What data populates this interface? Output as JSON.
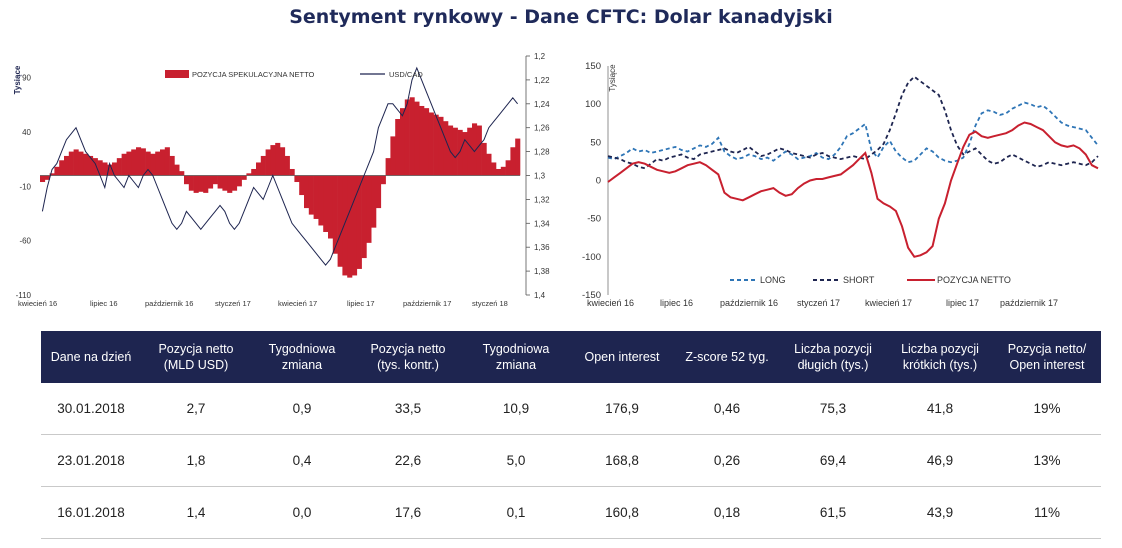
{
  "title": "Sentyment rynkowy - Dane CFTC:  Dolar kanadyjski",
  "colors": {
    "bar": "#c8202f",
    "usdcad": "#1e2550",
    "long": "#2e75b6",
    "short": "#1e2550",
    "net": "#c8202f",
    "header_bg": "#1e2550"
  },
  "chart_data": [
    {
      "type": "bar+line",
      "title": "",
      "ylabel_left": "Tysiące",
      "ylim_left": [
        -110,
        110
      ],
      "yticks_left": [
        "90",
        "40",
        "-10",
        "-60",
        "-110"
      ],
      "ylim_right": [
        1.4,
        1.2
      ],
      "yticks_right": [
        "1,2",
        "1,22",
        "1,24",
        "1,26",
        "1,28",
        "1,3",
        "1,32",
        "1,34",
        "1,36",
        "1,38",
        "1,4"
      ],
      "xticks": [
        "kwiecień 16",
        "lipiec 16",
        "październik 16",
        "styczeń 17",
        "kwiecień 17",
        "lipiec 17",
        "październik 17",
        "styczeń 18"
      ],
      "legend": {
        "bar": "POZYCJA SPEKULACYJNA NETTO",
        "line": "USD/CAD",
        "placement": "top"
      },
      "series": [
        {
          "name": "POZYCJA SPEKULACYJNA NETTO",
          "axis": "left",
          "kind": "bar",
          "values": [
            -6,
            -4,
            2,
            8,
            14,
            18,
            22,
            24,
            22,
            20,
            18,
            16,
            14,
            12,
            10,
            12,
            16,
            20,
            22,
            24,
            26,
            25,
            22,
            20,
            22,
            24,
            26,
            18,
            10,
            4,
            -8,
            -14,
            -16,
            -15,
            -16,
            -12,
            -8,
            -12,
            -14,
            -16,
            -14,
            -10,
            -4,
            2,
            6,
            12,
            18,
            24,
            28,
            30,
            26,
            18,
            6,
            -6,
            -18,
            -30,
            -36,
            -40,
            -46,
            -52,
            -58,
            -72,
            -84,
            -92,
            -94,
            -92,
            -86,
            -76,
            -62,
            -48,
            -30,
            -8,
            16,
            36,
            52,
            62,
            70,
            72,
            68,
            64,
            62,
            58,
            56,
            54,
            50,
            46,
            44,
            42,
            40,
            44,
            48,
            46,
            30,
            20,
            12,
            6,
            8,
            14,
            26,
            34
          ]
        },
        {
          "name": "USD/CAD",
          "axis": "right",
          "kind": "line",
          "values": [
            1.33,
            1.31,
            1.295,
            1.29,
            1.28,
            1.27,
            1.265,
            1.26,
            1.27,
            1.28,
            1.285,
            1.29,
            1.3,
            1.31,
            1.29,
            1.3,
            1.305,
            1.31,
            1.3,
            1.305,
            1.31,
            1.3,
            1.295,
            1.3,
            1.31,
            1.32,
            1.33,
            1.34,
            1.345,
            1.34,
            1.33,
            1.335,
            1.34,
            1.345,
            1.34,
            1.335,
            1.33,
            1.325,
            1.33,
            1.34,
            1.345,
            1.34,
            1.33,
            1.32,
            1.31,
            1.315,
            1.32,
            1.31,
            1.3,
            1.31,
            1.32,
            1.33,
            1.34,
            1.345,
            1.35,
            1.355,
            1.36,
            1.365,
            1.37,
            1.375,
            1.37,
            1.36,
            1.35,
            1.34,
            1.33,
            1.32,
            1.31,
            1.3,
            1.29,
            1.28,
            1.26,
            1.25,
            1.24,
            1.24,
            1.245,
            1.25,
            1.24,
            1.22,
            1.21,
            1.22,
            1.23,
            1.24,
            1.25,
            1.26,
            1.27,
            1.28,
            1.285,
            1.28,
            1.27,
            1.275,
            1.28,
            1.275,
            1.27,
            1.26,
            1.255,
            1.25,
            1.245,
            1.24,
            1.235,
            1.24
          ]
        }
      ]
    },
    {
      "type": "line",
      "title": "",
      "ylabel": "Tysiące",
      "ylim": [
        -150,
        150
      ],
      "yticks": [
        "150",
        "100",
        "50",
        "0",
        "-50",
        "-100",
        "-150"
      ],
      "xticks": [
        "kwiecień 16",
        "lipiec 16",
        "październik 16",
        "styczeń 17",
        "kwiecień 17",
        "lipiec 17",
        "październik 17"
      ],
      "legend": {
        "placement": "bottom",
        "entries": [
          "LONG",
          "SHORT",
          "POZYCJA NETTO"
        ]
      },
      "series": [
        {
          "name": "LONG",
          "style": "dashed",
          "values": [
            30,
            28,
            32,
            36,
            42,
            38,
            40,
            36,
            38,
            40,
            42,
            44,
            40,
            38,
            42,
            46,
            44,
            48,
            56,
            38,
            32,
            28,
            30,
            34,
            32,
            28,
            30,
            26,
            32,
            38,
            34,
            28,
            30,
            32,
            36,
            30,
            28,
            34,
            44,
            58,
            62,
            68,
            74,
            40,
            30,
            44,
            52,
            38,
            30,
            24,
            26,
            34,
            42,
            38,
            30,
            26,
            24,
            26,
            30,
            48,
            72,
            88,
            92,
            90,
            86,
            88,
            94,
            98,
            102,
            100,
            96,
            98,
            92,
            84,
            76,
            72,
            70,
            68,
            66,
            56,
            46
          ]
        },
        {
          "name": "SHORT",
          "style": "dashed",
          "values": [
            32,
            30,
            28,
            24,
            22,
            18,
            16,
            22,
            28,
            26,
            30,
            32,
            34,
            30,
            28,
            34,
            36,
            38,
            40,
            42,
            38,
            36,
            40,
            44,
            38,
            32,
            34,
            38,
            42,
            40,
            36,
            34,
            32,
            30,
            34,
            36,
            32,
            30,
            28,
            30,
            32,
            30,
            28,
            34,
            40,
            48,
            66,
            88,
            112,
            128,
            136,
            130,
            124,
            118,
            112,
            92,
            66,
            46,
            34,
            38,
            42,
            34,
            26,
            22,
            24,
            30,
            34,
            30,
            26,
            22,
            18,
            20,
            24,
            22,
            20,
            22,
            24,
            22,
            20,
            24,
            32
          ]
        },
        {
          "name": "POZYCJA NETTO",
          "style": "solid",
          "values": [
            -2,
            4,
            10,
            16,
            22,
            24,
            22,
            18,
            14,
            12,
            10,
            12,
            16,
            20,
            22,
            24,
            20,
            14,
            8,
            -16,
            -22,
            -24,
            -26,
            -22,
            -18,
            -14,
            -12,
            -10,
            -16,
            -20,
            -18,
            -10,
            -4,
            0,
            2,
            2,
            4,
            6,
            8,
            14,
            20,
            28,
            36,
            10,
            -24,
            -30,
            -34,
            -40,
            -60,
            -88,
            -100,
            -98,
            -94,
            -86,
            -50,
            -30,
            0,
            22,
            44,
            60,
            64,
            58,
            56,
            58,
            60,
            62,
            66,
            72,
            76,
            74,
            70,
            66,
            58,
            50,
            46,
            44,
            46,
            42,
            34,
            20,
            16
          ]
        }
      ]
    }
  ],
  "table": {
    "headers": [
      "Dane na dzień",
      "Pozycja netto (MLD USD)",
      "Tygodniowa zmiana",
      "Pozycja netto (tys. kontr.)",
      "Tygodniowa zmiana",
      "Open interest",
      "Z-score 52 tyg.",
      "Liczba pozycji długich (tys.)",
      "Liczba pozycji krótkich (tys.)",
      "Pozycja netto/ Open interest"
    ],
    "rows": [
      [
        "30.01.2018",
        "2,7",
        "0,9",
        "33,5",
        "10,9",
        "176,9",
        "0,46",
        "75,3",
        "41,8",
        "19%"
      ],
      [
        "23.01.2018",
        "1,8",
        "0,4",
        "22,6",
        "5,0",
        "168,8",
        "0,26",
        "69,4",
        "46,9",
        "13%"
      ],
      [
        "16.01.2018",
        "1,4",
        "0,0",
        "17,6",
        "0,1",
        "160,8",
        "0,18",
        "61,5",
        "43,9",
        "11%"
      ]
    ]
  }
}
